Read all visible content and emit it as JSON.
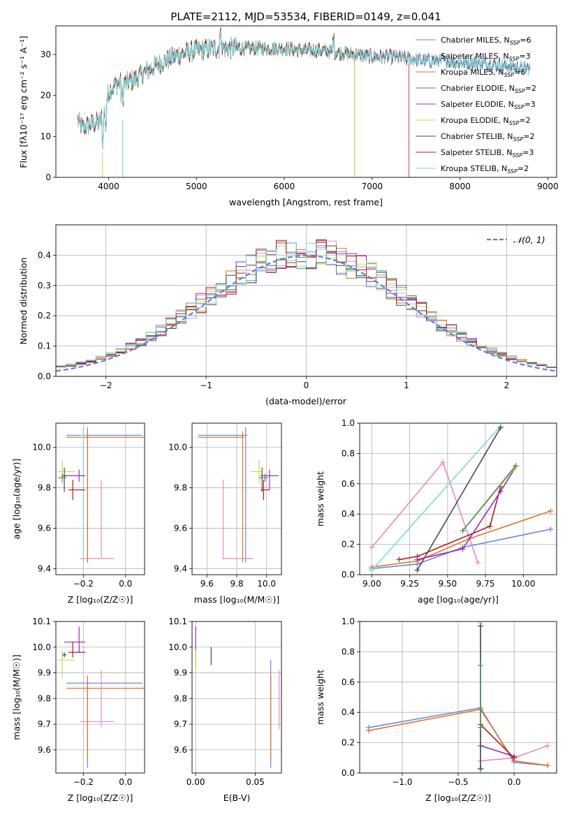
{
  "figure": {
    "title": "PLATE=2112, MJD=53534, FIBERID=0149, z=0.041"
  },
  "chart_data": [
    {
      "id": "spectrum",
      "type": "line",
      "xlabel": "wavelength [Angstrom, rest frame]",
      "ylabel": "Flux [fλ10⁻¹⁷ erg cm⁻² s⁻¹ A⁻¹]",
      "xlim": [
        3400,
        9100
      ],
      "ylim": [
        0,
        37
      ],
      "xticks": [
        4000,
        5000,
        6000,
        7000,
        8000,
        9000
      ],
      "yticks": [
        0,
        10,
        20,
        30
      ],
      "grid": false,
      "legend_position": "top-right",
      "series": [
        {
          "name": "Chabrier MILES, N",
          "sub": "SSP",
          "suffix": "=6",
          "color": "#6a8ad8",
          "cutoff": null
        },
        {
          "name": "Salpeter MILES, N",
          "sub": "SSP",
          "suffix": "=3",
          "color": "#e58ac4",
          "cutoff": null
        },
        {
          "name": "Kroupa MILES, N",
          "sub": "SSP",
          "suffix": "=6",
          "color": "#d9772b",
          "cutoff": 7420
        },
        {
          "name": "Chabrier ELODIE, N",
          "sub": "SSP",
          "suffix": "=2",
          "color": "#4a8a6a",
          "cutoff": 6800
        },
        {
          "name": "Salpeter ELODIE, N",
          "sub": "SSP",
          "suffix": "=3",
          "color": "#9b2ab5",
          "cutoff": 6800
        },
        {
          "name": "Kroupa ELODIE, N",
          "sub": "SSP",
          "suffix": "=2",
          "color": "#c8d94a",
          "cutoff": 6800
        },
        {
          "name": "Chabrier STELIB, N",
          "sub": "SSP",
          "suffix": "=2",
          "color": "#4a4a4a",
          "cutoff": null
        },
        {
          "name": "Salpeter STELIB, N",
          "sub": "SSP",
          "suffix": "=3",
          "color": "#b01c1c",
          "cutoff": 7420
        },
        {
          "name": "Kroupa STELIB, N",
          "sub": "SSP",
          "suffix": "=2",
          "color": "#7fd6dc",
          "cutoff": null
        }
      ],
      "continuum": {
        "x": [
          3650,
          3700,
          3800,
          3900,
          3950,
          4000,
          4050,
          4100,
          4200,
          4300,
          4400,
          4600,
          4800,
          5000,
          5200,
          5400,
          5600,
          5800,
          6000,
          6200,
          6400,
          6600,
          6800,
          7000,
          7200,
          7400,
          7600,
          7800,
          8000,
          8200,
          8400,
          8600,
          8800
        ],
        "y": [
          14,
          12,
          13,
          13.5,
          16,
          21,
          22,
          23,
          23,
          24,
          25.5,
          28,
          30,
          31,
          31.5,
          31.5,
          31.5,
          31.5,
          31.5,
          31,
          31,
          30.5,
          30,
          29.5,
          29.5,
          29,
          28.5,
          28.5,
          28,
          28,
          27.5,
          27,
          26.5
        ]
      }
    },
    {
      "id": "residuals",
      "type": "step",
      "xlabel": "(data-model)/error",
      "ylabel": "Normed distribution",
      "xlim": [
        -2.5,
        2.5
      ],
      "ylim": [
        0,
        0.5
      ],
      "xticks": [
        -2,
        -1,
        0,
        1,
        2
      ],
      "xtick_labels": [
        "−2",
        "−1",
        "0",
        "1",
        "2"
      ],
      "yticks": [
        0.0,
        0.1,
        0.2,
        0.3,
        0.4
      ],
      "ytick_labels": [
        "0.0",
        "0.1",
        "0.2",
        "0.3",
        "0.4"
      ],
      "grid": true,
      "bin_width": 0.1,
      "legend_position": "top-right",
      "reference_curve": {
        "name": "𝒩(0, 1)",
        "mean": 0,
        "sigma": 1,
        "color": "#5a7fd6",
        "style": "dashed"
      }
    },
    {
      "id": "age_vs_Z",
      "type": "errorbar",
      "xlabel": "Z [log₁₀(Z/Z☉)]",
      "ylabel": "age  [log₁₀(age/yr)]",
      "xlim": [
        -0.33,
        0.09
      ],
      "ylim": [
        9.37,
        10.12
      ],
      "xticks": [
        -0.2,
        0.0
      ],
      "xtick_labels": [
        "−0.2",
        "0.0"
      ],
      "yticks": [
        9.4,
        9.6,
        9.8,
        10.0
      ],
      "ytick_labels": [
        "9.4",
        "9.6",
        "9.8",
        "10.0"
      ],
      "grid": true,
      "points": [
        {
          "x": -0.18,
          "xerr": [
            0.1,
            0.26
          ],
          "y": 10.06,
          "yerr": [
            0.63,
            0.04
          ],
          "color": "#6a8ad8"
        },
        {
          "x": -0.18,
          "xerr": [
            0.1,
            0.27
          ],
          "y": 10.05,
          "yerr": [
            0.62,
            0.03
          ],
          "color": "#d9772b"
        },
        {
          "x": -0.115,
          "xerr": [
            0.1,
            0.06
          ],
          "y": 9.45,
          "yerr": [
            0,
            0.39
          ],
          "color": "#e58ac4"
        },
        {
          "x": -0.3,
          "xerr": [
            0.02,
            0.06
          ],
          "y": 9.88,
          "yerr": [
            0.06,
            0.06
          ],
          "color": "#c8d94a"
        },
        {
          "x": -0.3,
          "xerr": [
            0.02,
            0.02
          ],
          "y": 9.85,
          "yerr": [
            0.02,
            0.02
          ],
          "color": "#4a8a6a"
        },
        {
          "x": -0.2,
          "xerr": [
            0.02,
            0.01
          ],
          "y": 10.06,
          "yerr": [
            0.63,
            0.04
          ],
          "color": "#7fd6dc"
        },
        {
          "x": -0.22,
          "xerr": [
            0.07,
            0.03
          ],
          "y": 9.86,
          "yerr": [
            0.03,
            0.03
          ],
          "color": "#9b2ab5"
        },
        {
          "x": -0.25,
          "xerr": [
            0.02,
            0.06
          ],
          "y": 9.79,
          "yerr": [
            0.05,
            0.05
          ],
          "color": "#b01c1c"
        },
        {
          "x": -0.29,
          "xerr": [
            0.01,
            0.01
          ],
          "y": 9.86,
          "yerr": [
            0.08,
            0.04
          ],
          "color": "#4a4a4a"
        }
      ]
    },
    {
      "id": "age_vs_mass",
      "type": "errorbar",
      "xlabel": "mass [log₁₀(M/M☉)]",
      "ylabel": "",
      "xlim": [
        9.5,
        10.1
      ],
      "ylim": [
        9.37,
        10.12
      ],
      "xticks": [
        9.6,
        9.8,
        10.0
      ],
      "xtick_labels": [
        "9.6",
        "9.8",
        "10.0"
      ],
      "yticks": [
        9.4,
        9.6,
        9.8,
        10.0
      ],
      "ytick_labels": [
        "9.4",
        "9.6",
        "9.8",
        "10.0"
      ],
      "grid": true,
      "points": [
        {
          "x": 9.86,
          "xerr": [
            0.32,
            0.01
          ],
          "y": 10.06,
          "yerr": [
            0.63,
            0.04
          ],
          "color": "#6a8ad8"
        },
        {
          "x": 9.84,
          "xerr": [
            0.3,
            0.01
          ],
          "y": 10.05,
          "yerr": [
            0.62,
            0.03
          ],
          "color": "#d9772b"
        },
        {
          "x": 9.71,
          "xerr": [
            0.01,
            0.2
          ],
          "y": 9.45,
          "yerr": [
            0,
            0.39
          ],
          "color": "#e58ac4"
        },
        {
          "x": 9.95,
          "xerr": [
            0.06,
            0.02
          ],
          "y": 9.88,
          "yerr": [
            0.06,
            0.06
          ],
          "color": "#c8d94a"
        },
        {
          "x": 9.99,
          "xerr": [
            0.04,
            0.02
          ],
          "y": 9.85,
          "yerr": [
            0.02,
            0.02
          ],
          "color": "#4a8a6a"
        },
        {
          "x": 10.02,
          "xerr": [
            0.04,
            0.06
          ],
          "y": 9.86,
          "yerr": [
            0.07,
            0.03
          ],
          "color": "#9b2ab5"
        },
        {
          "x": 9.98,
          "xerr": [
            0.02,
            0.04
          ],
          "y": 9.79,
          "yerr": [
            0.05,
            0.05
          ],
          "color": "#b01c1c"
        },
        {
          "x": 9.97,
          "xerr": [
            0.01,
            0.01
          ],
          "y": 9.86,
          "yerr": [
            0.08,
            0.04
          ],
          "color": "#4a4a4a"
        }
      ]
    },
    {
      "id": "weight_vs_age",
      "type": "line",
      "xlabel": "age  [log₁₀(age/yr)]",
      "ylabel": "mass weight",
      "xlim": [
        8.92,
        10.22
      ],
      "ylim": [
        0,
        1.0
      ],
      "xticks": [
        9.0,
        9.25,
        9.5,
        9.75,
        10.0
      ],
      "xtick_labels": [
        "9.00",
        "9.25",
        "9.50",
        "9.75",
        "10.00"
      ],
      "yticks": [
        0,
        0.2,
        0.4,
        0.6,
        0.8,
        1.0
      ],
      "ytick_labels": [
        "0.0",
        "0.2",
        "0.4",
        "0.6",
        "0.8",
        "1.0"
      ],
      "grid": true,
      "series": [
        {
          "color": "#6a8ad8",
          "x": [
            9.0,
            9.3,
            9.6,
            10.18
          ],
          "y": [
            0.04,
            0.07,
            0.18,
            0.3
          ]
        },
        {
          "color": "#d9772b",
          "x": [
            9.0,
            9.3,
            9.65,
            10.18
          ],
          "y": [
            0.05,
            0.09,
            0.24,
            0.42
          ]
        },
        {
          "color": "#e58ac4",
          "x": [
            9.0,
            9.47,
            9.7
          ],
          "y": [
            0.18,
            0.74,
            0.08
          ]
        },
        {
          "color": "#7fd6dc",
          "x": [
            9.0,
            9.85
          ],
          "y": [
            0.03,
            0.98
          ]
        },
        {
          "color": "#4a4a4a",
          "x": [
            9.3,
            9.85
          ],
          "y": [
            0.03,
            0.97
          ]
        },
        {
          "color": "#b01c1c",
          "x": [
            9.18,
            9.3,
            9.78,
            9.85
          ],
          "y": [
            0.1,
            0.12,
            0.32,
            0.58
          ]
        },
        {
          "color": "#9b2ab5",
          "x": [
            9.3,
            9.6,
            9.85,
            9.95
          ],
          "y": [
            0.1,
            0.17,
            0.55,
            0.71
          ]
        },
        {
          "color": "#c8d94a",
          "x": [
            9.6,
            9.95
          ],
          "y": [
            0.29,
            0.71
          ]
        },
        {
          "color": "#4a8a6a",
          "x": [
            9.6,
            9.95
          ],
          "y": [
            0.29,
            0.72
          ]
        }
      ]
    },
    {
      "id": "mass_vs_Z",
      "type": "errorbar",
      "xlabel": "Z [log₁₀(Z/Z☉)]",
      "ylabel": "mass [log₁₀(M/M☉)]",
      "xlim": [
        -0.33,
        0.09
      ],
      "ylim": [
        9.51,
        10.1
      ],
      "xticks": [
        -0.2,
        0.0
      ],
      "xtick_labels": [
        "−0.2",
        "0.0"
      ],
      "yticks": [
        9.6,
        9.7,
        9.8,
        9.9,
        10.0,
        10.1
      ],
      "ytick_labels": [
        "9.6",
        "9.7",
        "9.8",
        "9.9",
        "10.0",
        "10.1"
      ],
      "grid": true,
      "points": [
        {
          "x": -0.18,
          "xerr": [
            0.1,
            0.26
          ],
          "y": 9.86,
          "yerr": [
            0.33,
            0.01
          ],
          "color": "#6a8ad8"
        },
        {
          "x": -0.18,
          "xerr": [
            0.1,
            0.27
          ],
          "y": 9.84,
          "yerr": [
            0.29,
            0.05
          ],
          "color": "#d9772b"
        },
        {
          "x": -0.115,
          "xerr": [
            0.1,
            0.06
          ],
          "y": 9.71,
          "yerr": [
            0.02,
            0.2
          ],
          "color": "#e58ac4"
        },
        {
          "x": -0.3,
          "xerr": [
            0.02,
            0.06
          ],
          "y": 9.95,
          "yerr": [
            0.07,
            0.04
          ],
          "color": "#c8d94a"
        },
        {
          "x": -0.22,
          "xerr": [
            0.07,
            0.03
          ],
          "y": 10.02,
          "yerr": [
            0.04,
            0.06
          ],
          "color": "#9b2ab5"
        },
        {
          "x": -0.25,
          "xerr": [
            0.02,
            0.06
          ],
          "y": 9.98,
          "yerr": [
            0.02,
            0.04
          ],
          "color": "#b01c1c"
        },
        {
          "x": -0.29,
          "xerr": [
            0.01,
            0.01
          ],
          "y": 9.97,
          "yerr": [
            0.01,
            0.01
          ],
          "color": "#4a4a4a"
        }
      ]
    },
    {
      "id": "mass_vs_ebv",
      "type": "errorbar",
      "xlabel": "E(B-V)",
      "ylabel": "",
      "xlim": [
        -0.003,
        0.072
      ],
      "ylim": [
        9.51,
        10.1
      ],
      "xticks": [
        0.0,
        0.05
      ],
      "xtick_labels": [
        "0.00",
        "0.05"
      ],
      "yticks": [
        9.6,
        9.7,
        9.8,
        9.9,
        10.0,
        10.1
      ],
      "ytick_labels": [
        "9.6",
        "9.7",
        "9.8",
        "9.9",
        "10.0",
        "10.1"
      ],
      "grid": true,
      "points": [
        {
          "x": 0.0,
          "y": 10.0,
          "yerr": [
            0.08,
            0.08
          ],
          "color": "#9b2ab5"
        },
        {
          "x": 0.0,
          "y": 9.95,
          "yerr": [
            0.07,
            0.04
          ],
          "color": "#c8d94a"
        },
        {
          "x": 0.013,
          "y": 9.97,
          "yerr": [
            0.04,
            0.03
          ],
          "color": "#4a4a4a"
        },
        {
          "x": 0.063,
          "y": 9.86,
          "yerr": [
            0.33,
            0.09
          ],
          "color": "#6a8ad8"
        },
        {
          "x": 0.063,
          "y": 9.84,
          "yerr": [
            0.29,
            0.05
          ],
          "color": "#d9772b"
        },
        {
          "x": 0.07,
          "y": 9.8,
          "yerr": [
            0.12,
            0.11
          ],
          "color": "#e58ac4"
        }
      ]
    },
    {
      "id": "weight_vs_Z",
      "type": "line",
      "xlabel": "Z [log₁₀(Z/Z☉)]",
      "ylabel": "mass weight",
      "xlim": [
        -1.38,
        0.38
      ],
      "ylim": [
        0,
        1.0
      ],
      "xticks": [
        -1.0,
        -0.5,
        0.0
      ],
      "xtick_labels": [
        "−1.0",
        "−0.5",
        "0.0"
      ],
      "yticks": [
        0,
        0.2,
        0.4,
        0.6,
        0.8,
        1.0
      ],
      "ytick_labels": [
        "0.0",
        "0.2",
        "0.4",
        "0.6",
        "0.8",
        "1.0"
      ],
      "grid": true,
      "series": [
        {
          "color": "#6a8ad8",
          "x": [
            -1.3,
            -0.3,
            0.0,
            0.3
          ],
          "y": [
            0.3,
            0.43,
            0.07,
            0.05
          ]
        },
        {
          "color": "#d9772b",
          "x": [
            -1.3,
            -0.3,
            0.0,
            0.3
          ],
          "y": [
            0.28,
            0.42,
            0.08,
            0.05
          ]
        },
        {
          "color": "#e58ac4",
          "x": [
            -0.3,
            0.0,
            0.3
          ],
          "y": [
            0.08,
            0.1,
            0.18
          ]
        },
        {
          "color": "#9b2ab5",
          "x": [
            -0.3,
            0.0
          ],
          "y": [
            0.18,
            0.11
          ]
        },
        {
          "color": "#b01c1c",
          "x": [
            -0.3,
            0.0
          ],
          "y": [
            0.32,
            0.1
          ]
        },
        {
          "color": "#7fd6dc",
          "x": [
            -0.3,
            -0.3
          ],
          "y": [
            0.02,
            0.99
          ]
        },
        {
          "color": "#4a4a4a",
          "x": [
            -0.3,
            -0.3
          ],
          "y": [
            0.03,
            0.97
          ]
        },
        {
          "color": "#c8d94a",
          "x": [
            -0.3,
            -0.3
          ],
          "y": [
            0.3,
            0.71
          ]
        },
        {
          "color": "#4a8a6a",
          "x": [
            -0.3,
            -0.3
          ],
          "y": [
            0.3,
            0.71
          ]
        }
      ]
    }
  ]
}
